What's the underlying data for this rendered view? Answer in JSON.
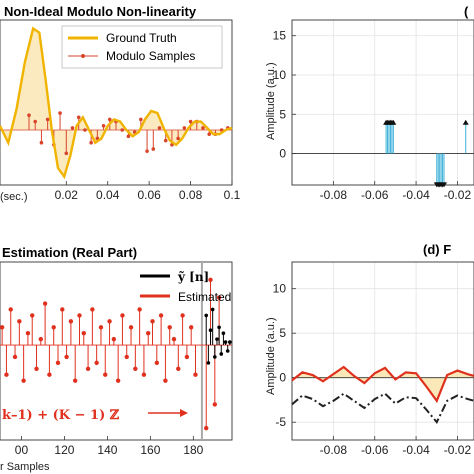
{
  "figure": {
    "panel_a_title": "Non-Ideal Modulo Non-linearity",
    "panel_b_title": "(",
    "panel_c_title": "Estimation (Real Part)",
    "panel_d_title": "(d) F"
  },
  "chart_data": [
    {
      "type": "line",
      "panel": "a",
      "title": "Non-Ideal Modulo Non-linearity",
      "xlabel": "(sec.)",
      "xlim": [
        -0.012,
        0.1
      ],
      "ylim": [
        -1.3,
        2.6
      ],
      "x_ticks": [
        "0.02",
        "0.04",
        "0.06",
        "0.08",
        "0.1"
      ],
      "x_tick_values": [
        0.02,
        0.04,
        0.06,
        0.08,
        0.1
      ],
      "legend_location": "top-right",
      "series": [
        {
          "name": "Ground Truth",
          "color": "#f0b400",
          "x": [
            -0.012,
            -0.008,
            -0.004,
            0.0,
            0.004,
            0.007,
            0.01,
            0.013,
            0.016,
            0.019,
            0.022,
            0.025,
            0.028,
            0.031,
            0.034,
            0.037,
            0.04,
            0.043,
            0.046,
            0.049,
            0.052,
            0.055,
            0.058,
            0.061,
            0.064,
            0.067,
            0.07,
            0.073,
            0.076,
            0.079,
            0.082,
            0.085,
            0.088,
            0.091,
            0.094,
            0.097,
            0.1
          ],
          "y": [
            0.1,
            -0.3,
            0.5,
            1.6,
            2.4,
            2.3,
            1.2,
            0.0,
            -0.9,
            -1.1,
            -0.6,
            0.1,
            0.3,
            0.0,
            -0.3,
            -0.2,
            0.1,
            0.25,
            0.2,
            0.0,
            -0.15,
            -0.05,
            0.25,
            0.45,
            0.4,
            0.05,
            -0.25,
            -0.35,
            -0.2,
            0.05,
            0.2,
            0.2,
            0.05,
            -0.1,
            -0.1,
            0.0,
            0.05
          ]
        },
        {
          "name": "Modulo Samples",
          "color": "#d9452b",
          "x": [
            0.002,
            0.005,
            0.008,
            0.011,
            0.014,
            0.017,
            0.02,
            0.023,
            0.026,
            0.029,
            0.032,
            0.035,
            0.038,
            0.041,
            0.044,
            0.047,
            0.05,
            0.053,
            0.056,
            0.059,
            0.062,
            0.065,
            0.068,
            0.071,
            0.074,
            0.077,
            0.08,
            0.083,
            0.086,
            0.089,
            0.092,
            0.095,
            0.098
          ],
          "y": [
            0.35,
            0.2,
            -0.3,
            0.25,
            -0.35,
            0.4,
            -0.55,
            0.05,
            0.3,
            0.0,
            -0.3,
            -0.2,
            0.1,
            0.25,
            0.2,
            0.0,
            -0.15,
            -0.05,
            0.25,
            -0.5,
            -0.45,
            0.05,
            -0.25,
            -0.35,
            -0.2,
            0.05,
            0.2,
            0.2,
            0.05,
            -0.1,
            -0.1,
            0.0,
            0.05
          ]
        }
      ]
    },
    {
      "type": "stem",
      "panel": "b",
      "ylabel": "Amplitude (a.u.)",
      "xlim": [
        -0.1,
        -0.012
      ],
      "ylim": [
        -4,
        17
      ],
      "x_ticks": [
        "-0.08",
        "-0.06",
        "-0.04",
        "-0.02"
      ],
      "x_tick_values": [
        -0.08,
        -0.06,
        -0.04,
        -0.02
      ],
      "y_ticks": [
        "15",
        "10",
        "5",
        "0"
      ],
      "y_tick_values": [
        15,
        10,
        5,
        0
      ],
      "grid": true,
      "series": [
        {
          "color": "#3bb0d8",
          "x": [
            -0.0545,
            -0.0538,
            -0.0531,
            -0.0524,
            -0.0517,
            -0.051,
            -0.03,
            -0.0293,
            -0.0286,
            -0.0279,
            -0.0272,
            -0.0265,
            -0.016
          ],
          "y": [
            3.8,
            3.8,
            3.8,
            3.8,
            3.8,
            3.8,
            -3.8,
            -3.8,
            -3.8,
            -3.8,
            -3.8,
            -3.8,
            3.8
          ]
        }
      ]
    },
    {
      "type": "stem",
      "panel": "c",
      "title": "Estimation (Real Part)",
      "xlabel": "r Samples",
      "xlim": [
        90,
        198
      ],
      "ylim": [
        -1.6,
        1.4
      ],
      "x_ticks": [
        "00",
        "120",
        "140",
        "160",
        "180"
      ],
      "x_tick_values": [
        100,
        120,
        140,
        160,
        180
      ],
      "legend_location": "top-right",
      "annotation": "k–1) + (K − 1) ℤ",
      "marker_line_x": 184,
      "series": [
        {
          "name": "ỹ [n]",
          "color": "#000000",
          "x": [
            186,
            187,
            188,
            189,
            190,
            191,
            192,
            193,
            194,
            195,
            196,
            197
          ],
          "y": [
            0.5,
            -0.3,
            0.25,
            0.6,
            -0.2,
            0.1,
            0.3,
            -0.15,
            0.2,
            0.05,
            -0.1,
            0.05
          ]
        },
        {
          "name": "Estimated",
          "color": "#e0301e",
          "x": [
            91,
            93,
            95,
            97,
            99,
            101,
            103,
            105,
            107,
            109,
            111,
            113,
            115,
            117,
            119,
            121,
            123,
            125,
            127,
            129,
            131,
            133,
            135,
            137,
            139,
            141,
            143,
            145,
            147,
            149,
            151,
            153,
            155,
            157,
            159,
            161,
            163,
            165,
            167,
            169,
            171,
            173,
            175,
            177,
            179,
            181,
            186,
            188,
            190,
            192
          ],
          "y": [
            0.3,
            -0.5,
            0.6,
            -0.2,
            0.4,
            -0.6,
            0.2,
            0.5,
            -0.4,
            0.1,
            0.7,
            -0.5,
            0.3,
            -0.3,
            0.6,
            -0.2,
            0.4,
            -0.6,
            0.5,
            0.2,
            -0.4,
            0.6,
            -0.3,
            0.3,
            -0.5,
            0.4,
            0.1,
            -0.6,
            0.5,
            -0.2,
            0.3,
            -0.4,
            0.6,
            -0.5,
            0.2,
            0.4,
            -0.3,
            0.5,
            -0.6,
            0.3,
            0.1,
            -0.4,
            0.5,
            -0.2,
            0.3,
            -0.5,
            -1.4,
            1.1,
            -1.0,
            0.8
          ]
        }
      ]
    },
    {
      "type": "line",
      "panel": "d",
      "ylabel": "Amplitude (a.u.)",
      "xlim": [
        -0.1,
        -0.012
      ],
      "ylim": [
        -7,
        13
      ],
      "x_ticks": [
        "-0.08",
        "-0.06",
        "-0.04",
        "-0.02"
      ],
      "x_tick_values": [
        -0.08,
        -0.06,
        -0.04,
        -0.02
      ],
      "y_ticks": [
        "10",
        "5",
        "0",
        "-5"
      ],
      "y_tick_values": [
        10,
        5,
        0,
        -5
      ],
      "grid": true,
      "series": [
        {
          "color": "#e0301e",
          "x": [
            -0.1,
            -0.095,
            -0.09,
            -0.085,
            -0.08,
            -0.075,
            -0.07,
            -0.065,
            -0.06,
            -0.055,
            -0.05,
            -0.045,
            -0.04,
            -0.035,
            -0.03,
            -0.025,
            -0.02,
            -0.015,
            -0.012
          ],
          "y": [
            -0.3,
            0.6,
            0.3,
            -0.4,
            0.4,
            1.2,
            0.2,
            -0.6,
            0.5,
            1.1,
            -0.2,
            0.6,
            0.5,
            -1.0,
            -2.6,
            0.3,
            0.8,
            0.4,
            0.2
          ]
        },
        {
          "color": "#222222",
          "dash": "dashdot",
          "x": [
            -0.1,
            -0.095,
            -0.09,
            -0.085,
            -0.08,
            -0.075,
            -0.07,
            -0.065,
            -0.06,
            -0.055,
            -0.05,
            -0.045,
            -0.04,
            -0.035,
            -0.03,
            -0.025,
            -0.02,
            -0.015,
            -0.012
          ],
          "y": [
            -3.0,
            -2.0,
            -2.4,
            -3.2,
            -2.6,
            -1.8,
            -2.6,
            -3.4,
            -2.4,
            -1.8,
            -2.9,
            -2.2,
            -2.3,
            -3.6,
            -5.0,
            -2.6,
            -2.0,
            -2.4,
            -2.6
          ]
        }
      ]
    }
  ]
}
